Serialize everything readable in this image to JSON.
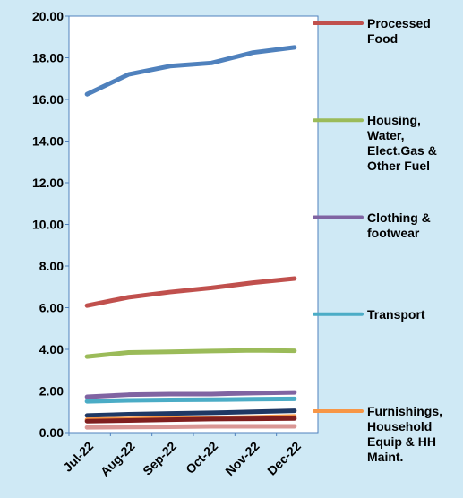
{
  "chart_data": {
    "type": "line",
    "categories": [
      "Jul-22",
      "Aug-22",
      "Sep-22",
      "Oct-22",
      "Nov-22",
      "Dec-22"
    ],
    "ylim": [
      0,
      20
    ],
    "yticks": [
      {
        "value": 0,
        "label": "0.00"
      },
      {
        "value": 2,
        "label": "2.00"
      },
      {
        "value": 4,
        "label": "4.00"
      },
      {
        "value": 6,
        "label": "6.00"
      },
      {
        "value": 8,
        "label": "8.00"
      },
      {
        "value": 10,
        "label": "10.00"
      },
      {
        "value": 12,
        "label": "12.00"
      },
      {
        "value": 14,
        "label": "14.00"
      },
      {
        "value": 16,
        "label": "16.00"
      },
      {
        "value": 18,
        "label": "18.00"
      },
      {
        "value": 20,
        "label": "20.00"
      }
    ],
    "legend": "right",
    "series": [
      {
        "color": "#4f81bd",
        "values": [
          16.25,
          17.2,
          17.6,
          17.75,
          18.25,
          18.5
        ]
      },
      {
        "name": "Processed Food",
        "color": "#c0504d",
        "values": [
          6.1,
          6.5,
          6.75,
          6.95,
          7.2,
          7.4
        ]
      },
      {
        "name": "Housing, Water, Elect.Gas & Other Fuel",
        "color": "#9bbb59",
        "values": [
          3.65,
          3.85,
          3.88,
          3.92,
          3.95,
          3.93
        ]
      },
      {
        "name": "Clothing & footwear",
        "color": "#8064a2",
        "values": [
          1.72,
          1.82,
          1.85,
          1.85,
          1.9,
          1.93
        ]
      },
      {
        "name": "Transport",
        "color": "#4bacc6",
        "values": [
          1.5,
          1.55,
          1.57,
          1.58,
          1.6,
          1.62
        ]
      },
      {
        "color": "#1f3864",
        "values": [
          0.82,
          0.88,
          0.92,
          0.95,
          1.0,
          1.05
        ]
      },
      {
        "name": "Furnishings, Household Equip & HH Maint.",
        "color": "#f79646",
        "values": [
          0.62,
          0.65,
          0.68,
          0.7,
          0.73,
          0.78
        ]
      },
      {
        "color": "#7f1f1f",
        "values": [
          0.55,
          0.58,
          0.62,
          0.65,
          0.66,
          0.68
        ]
      },
      {
        "color": "#d99694",
        "values": [
          0.25,
          0.27,
          0.28,
          0.3,
          0.3,
          0.3
        ]
      }
    ]
  }
}
